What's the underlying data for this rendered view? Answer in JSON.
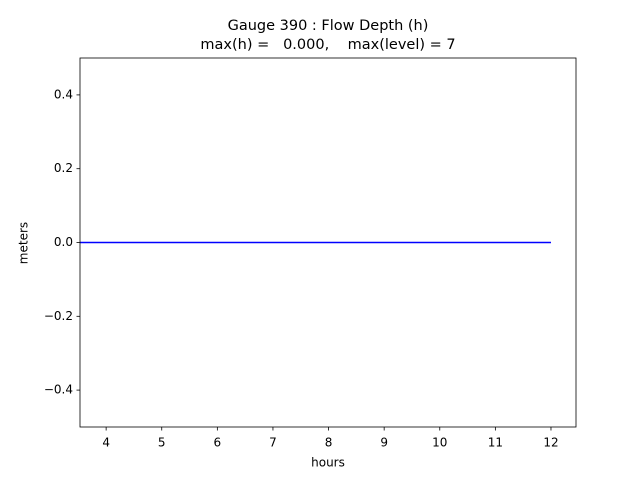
{
  "chart_data": {
    "type": "line",
    "title": "Gauge 390 : Flow Depth (h)",
    "subtitle": "max(h) =   0.000,    max(level) = 7",
    "x_label": "hours",
    "y_label": "meters",
    "x": [
      3.53,
      12
    ],
    "series": [
      {
        "name": "h",
        "color": "#0000ff",
        "values": [
          0,
          0
        ]
      }
    ],
    "xlim": [
      3.53,
      12.45
    ],
    "xticks": [
      4,
      5,
      6,
      7,
      8,
      9,
      10,
      11,
      12
    ],
    "ylim": [
      -0.5,
      0.5
    ],
    "yticks": [
      {
        "value": -0.4,
        "label": "−0.4"
      },
      {
        "value": -0.2,
        "label": "−0.2"
      },
      {
        "value": 0,
        "label": "0.0"
      },
      0.2,
      0.4
    ],
    "grid": false
  }
}
